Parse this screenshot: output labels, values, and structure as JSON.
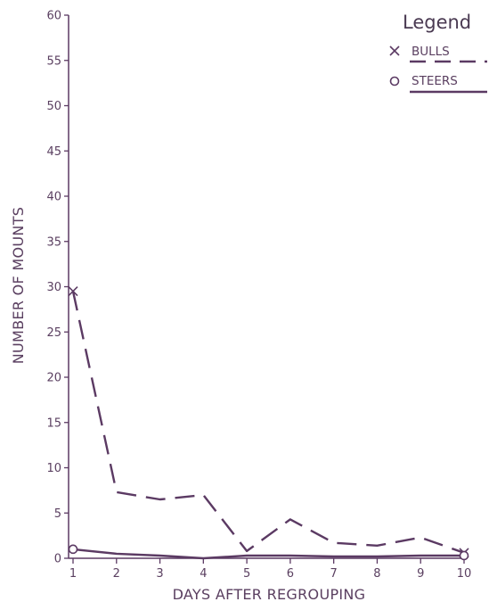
{
  "chart_data": {
    "type": "line",
    "title": "",
    "xlabel": "DAYS AFTER REGROUPING",
    "ylabel": "NUMBER OF MOUNTS",
    "x": [
      1,
      2,
      3,
      4,
      5,
      6,
      7,
      8,
      9,
      10
    ],
    "xlim": [
      1,
      10
    ],
    "ylim": [
      0,
      60
    ],
    "x_ticks": [
      1,
      2,
      3,
      4,
      5,
      6,
      7,
      8,
      9,
      10
    ],
    "y_ticks": [
      0,
      5,
      10,
      15,
      20,
      25,
      30,
      35,
      40,
      45,
      50,
      55,
      60
    ],
    "grid": false,
    "legend": {
      "title": "Legend",
      "placement": "top-right"
    },
    "series": [
      {
        "name": "BULLS",
        "marker": "x",
        "line_style": "dashed",
        "values": [
          29.5,
          7.3,
          6.5,
          7.0,
          0.8,
          4.3,
          1.7,
          1.4,
          2.3,
          0.6
        ]
      },
      {
        "name": "STEERS",
        "marker": "o",
        "line_style": "solid",
        "values": [
          1.0,
          0.5,
          0.3,
          0.0,
          0.3,
          0.3,
          0.2,
          0.2,
          0.3,
          0.3
        ]
      }
    ],
    "colors": {
      "line": "#5b3a63",
      "axis": "#5b3a63",
      "text": "#5a3f60"
    }
  }
}
